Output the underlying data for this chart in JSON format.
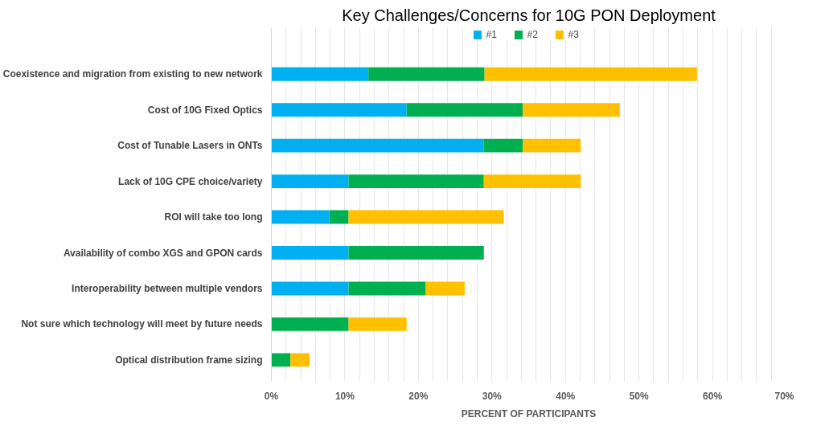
{
  "chart_data": {
    "type": "bar",
    "orientation": "horizontal",
    "stacked": true,
    "title": "Key Challenges/Concerns for 10G PON Deployment",
    "xlabel": "PERCENT OF PARTICIPANTS",
    "categories": [
      "Coexistence and migration from existing to new network",
      "Cost of 10G Fixed Optics",
      "Cost of Tunable Lasers in ONTs",
      "Lack of 10G CPE choice/variety",
      "ROI will take too long",
      "Availability of combo XGS and GPON cards",
      "Interoperability between multiple vendors",
      "Not sure which technology will meet by future needs",
      "Optical distribution frame sizing"
    ],
    "series": [
      {
        "name": "#1",
        "color": "#00b0f0",
        "values": [
          13.2,
          18.4,
          28.9,
          10.5,
          7.9,
          10.5,
          10.5,
          0,
          0
        ]
      },
      {
        "name": "#2",
        "color": "#00b050",
        "values": [
          15.8,
          15.8,
          5.3,
          18.4,
          2.6,
          18.4,
          10.5,
          10.5,
          2.6
        ]
      },
      {
        "name": "#3",
        "color": "#ffc000",
        "values": [
          28.9,
          13.2,
          7.9,
          13.2,
          21.1,
          0,
          5.3,
          7.9,
          2.6
        ]
      }
    ],
    "xlim": [
      0,
      70
    ],
    "xticks": [
      {
        "value": 0,
        "label": "0%"
      },
      {
        "value": 2,
        "label": null
      },
      {
        "value": 4,
        "label": null
      },
      {
        "value": 6,
        "label": null
      },
      {
        "value": 8,
        "label": null
      },
      {
        "value": 10,
        "label": "10%"
      },
      {
        "value": 12,
        "label": null
      },
      {
        "value": 14,
        "label": null
      },
      {
        "value": 16,
        "label": null
      },
      {
        "value": 18,
        "label": null
      },
      {
        "value": 20,
        "label": "20%"
      },
      {
        "value": 22,
        "label": null
      },
      {
        "value": 24,
        "label": null
      },
      {
        "value": 26,
        "label": null
      },
      {
        "value": 28,
        "label": null
      },
      {
        "value": 30,
        "label": "30%"
      },
      {
        "value": 32,
        "label": null
      },
      {
        "value": 34,
        "label": null
      },
      {
        "value": 36,
        "label": null
      },
      {
        "value": 38,
        "label": null
      },
      {
        "value": 40,
        "label": "40%"
      },
      {
        "value": 42,
        "label": null
      },
      {
        "value": 44,
        "label": null
      },
      {
        "value": 46,
        "label": null
      },
      {
        "value": 48,
        "label": null
      },
      {
        "value": 50,
        "label": "50%"
      },
      {
        "value": 52,
        "label": null
      },
      {
        "value": 54,
        "label": null
      },
      {
        "value": 56,
        "label": null
      },
      {
        "value": 58,
        "label": null
      },
      {
        "value": 60,
        "label": "60%"
      },
      {
        "value": 62,
        "label": null
      },
      {
        "value": 64,
        "label": null
      },
      {
        "value": 66,
        "label": null
      },
      {
        "value": 68,
        "label": null
      },
      {
        "value": 70,
        "label": "70%"
      }
    ],
    "grid": "x",
    "legend": "top"
  }
}
